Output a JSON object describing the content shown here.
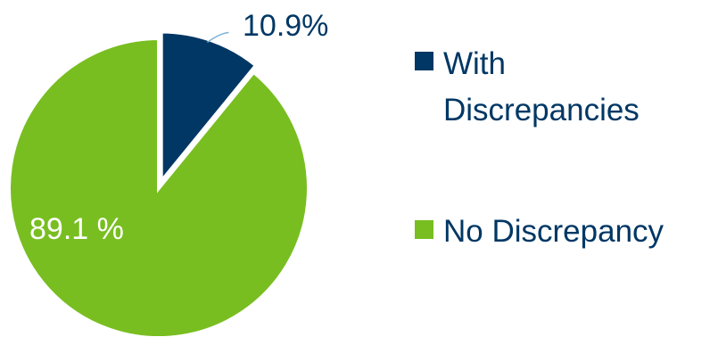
{
  "chart_data": {
    "type": "pie",
    "slices": [
      {
        "label": "With Discrepancies",
        "value": 10.9,
        "display": "10.9%",
        "color": "#003764"
      },
      {
        "label": "No Discrepancy",
        "value": 89.1,
        "display": "89.1 %",
        "color": "#78BE20"
      }
    ],
    "legend": {
      "position": "right",
      "items": [
        {
          "lines": [
            "With",
            "Discrepancies"
          ],
          "color": "#003764"
        },
        {
          "lines": [
            "No Discrepancy"
          ],
          "color": "#78BE20"
        }
      ]
    },
    "label_colors": {
      "outside": "#003764",
      "inside": "#ffffff",
      "legend_text": "#003764",
      "leader_line": "#7FB2D6"
    },
    "start_angle_deg": 0,
    "direction": "clockwise"
  }
}
